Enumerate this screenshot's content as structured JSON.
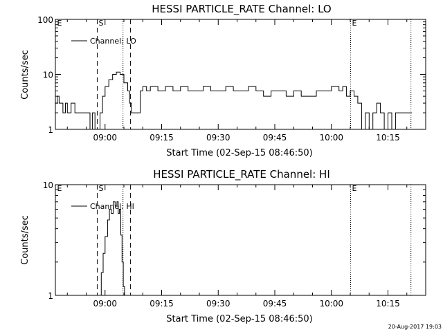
{
  "footer_timestamp": "20-Aug-2017 19:03",
  "chart_data": [
    {
      "type": "line",
      "title": "HESSI PARTICLE_RATE Channel: LO",
      "xlabel": "Start Time (02-Sep-15 08:46:50)",
      "ylabel": "Counts/sec",
      "x_tick_labels": [
        "09:00",
        "09:15",
        "09:30",
        "09:45",
        "10:00",
        "10:15"
      ],
      "y_tick_labels": [
        "1",
        "10",
        "100"
      ],
      "ylim": [
        1,
        100
      ],
      "y_scale": "log",
      "legend": "Channel: LO",
      "series": [
        {
          "name": "Channel: LO",
          "points": [
            [
              "08:46:50",
              3
            ],
            [
              "08:47:20",
              4
            ],
            [
              "08:47:50",
              3
            ],
            [
              "08:48:20",
              3
            ],
            [
              "08:48:50",
              2
            ],
            [
              "08:49:30",
              3
            ],
            [
              "08:50:00",
              2
            ],
            [
              "08:51:00",
              3
            ],
            [
              "08:52:00",
              2
            ],
            [
              "08:53:30",
              2
            ],
            [
              "08:55:00",
              2
            ],
            [
              "08:56:00",
              1
            ],
            [
              "08:56:40",
              2
            ],
            [
              "08:57:20",
              1
            ],
            [
              "08:58:00",
              1
            ],
            [
              "08:58:40",
              2
            ],
            [
              "08:59:20",
              4
            ],
            [
              "09:00:00",
              6
            ],
            [
              "09:01:00",
              8
            ],
            [
              "09:02:00",
              10
            ],
            [
              "09:03:00",
              11
            ],
            [
              "09:04:00",
              10
            ],
            [
              "09:05:00",
              7
            ],
            [
              "09:06:00",
              5
            ],
            [
              "09:06:30",
              3
            ],
            [
              "09:07:00",
              2
            ],
            [
              "09:08:00",
              2
            ],
            [
              "09:09:00",
              2
            ],
            [
              "09:09:20",
              5
            ],
            [
              "09:10:00",
              6
            ],
            [
              "09:11:00",
              5
            ],
            [
              "09:12:00",
              6
            ],
            [
              "09:14:00",
              5
            ],
            [
              "09:16:00",
              6
            ],
            [
              "09:18:00",
              5
            ],
            [
              "09:20:00",
              6
            ],
            [
              "09:22:00",
              5
            ],
            [
              "09:24:00",
              5
            ],
            [
              "09:26:00",
              6
            ],
            [
              "09:28:00",
              5
            ],
            [
              "09:30:00",
              5
            ],
            [
              "09:32:00",
              6
            ],
            [
              "09:34:00",
              5
            ],
            [
              "09:36:00",
              5
            ],
            [
              "09:38:00",
              6
            ],
            [
              "09:40:00",
              5
            ],
            [
              "09:42:00",
              4
            ],
            [
              "09:44:00",
              5
            ],
            [
              "09:46:00",
              5
            ],
            [
              "09:48:00",
              4
            ],
            [
              "09:50:00",
              5
            ],
            [
              "09:52:00",
              4
            ],
            [
              "09:54:00",
              4
            ],
            [
              "09:56:00",
              5
            ],
            [
              "09:58:00",
              5
            ],
            [
              "10:00:00",
              6
            ],
            [
              "10:02:00",
              5
            ],
            [
              "10:03:00",
              6
            ],
            [
              "10:04:00",
              4
            ],
            [
              "10:05:00",
              5
            ],
            [
              "10:06:00",
              4
            ],
            [
              "10:07:00",
              3
            ],
            [
              "10:08:00",
              1
            ],
            [
              "10:09:00",
              2
            ],
            [
              "10:10:00",
              1
            ],
            [
              "10:11:00",
              2
            ],
            [
              "10:12:00",
              3
            ],
            [
              "10:13:00",
              2
            ],
            [
              "10:14:00",
              1
            ],
            [
              "10:15:00",
              2
            ],
            [
              "10:16:00",
              1
            ],
            [
              "10:17:00",
              2
            ],
            [
              "10:19:00",
              2
            ],
            [
              "10:21:00",
              2
            ]
          ]
        }
      ],
      "markers": [
        {
          "label": "E",
          "time": "08:46:50",
          "style": "dotted"
        },
        {
          "label": "S",
          "time": "08:57:50",
          "style": "dashed"
        },
        {
          "label": "",
          "time": "09:04:40",
          "style": "dotted"
        },
        {
          "label": "",
          "time": "09:06:40",
          "style": "dashed"
        },
        {
          "label": "E",
          "time": "10:05:00",
          "style": "dotted"
        },
        {
          "label": "",
          "time": "10:21:00",
          "style": "dotted"
        }
      ]
    },
    {
      "type": "line",
      "title": "HESSI PARTICLE_RATE Channel: HI",
      "xlabel": "Start Time (02-Sep-15 08:46:50)",
      "ylabel": "Counts/sec",
      "x_tick_labels": [
        "09:00",
        "09:15",
        "09:30",
        "09:45",
        "10:00",
        "10:15"
      ],
      "y_tick_labels": [
        "1",
        "10"
      ],
      "ylim": [
        1,
        10
      ],
      "y_scale": "log",
      "legend": "Channel: HI",
      "series": [
        {
          "name": "Channel: HI",
          "points": [
            [
              "08:58:30",
              1
            ],
            [
              "08:59:00",
              1.6
            ],
            [
              "08:59:30",
              2.4
            ],
            [
              "09:00:00",
              3.4
            ],
            [
              "09:00:40",
              4.8
            ],
            [
              "09:01:10",
              6
            ],
            [
              "09:01:40",
              5.5
            ],
            [
              "09:02:10",
              7
            ],
            [
              "09:02:40",
              6.5
            ],
            [
              "09:03:10",
              7
            ],
            [
              "09:03:30",
              5.5
            ],
            [
              "09:03:50",
              6
            ],
            [
              "09:04:10",
              3.5
            ],
            [
              "09:04:30",
              2
            ],
            [
              "09:04:50",
              1.2
            ],
            [
              "09:05:10",
              1
            ]
          ]
        }
      ],
      "markers": [
        {
          "label": "E",
          "time": "08:46:50",
          "style": "dotted"
        },
        {
          "label": "S",
          "time": "08:57:50",
          "style": "dashed"
        },
        {
          "label": "",
          "time": "09:04:40",
          "style": "dotted"
        },
        {
          "label": "",
          "time": "09:06:40",
          "style": "dashed"
        },
        {
          "label": "E",
          "time": "10:05:00",
          "style": "dotted"
        },
        {
          "label": "",
          "time": "10:21:00",
          "style": "dotted"
        }
      ]
    }
  ]
}
